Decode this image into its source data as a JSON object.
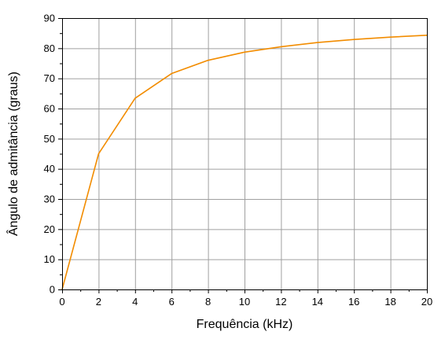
{
  "chart_data": {
    "type": "line",
    "title": "",
    "xlabel": "Frequência (kHz)",
    "ylabel": "Ângulo de admitância (graus)",
    "xlim": [
      0,
      20
    ],
    "ylim": [
      0,
      90
    ],
    "x_ticks": [
      0,
      2,
      4,
      6,
      8,
      10,
      12,
      14,
      16,
      18,
      20
    ],
    "y_ticks": [
      0,
      10,
      20,
      30,
      40,
      50,
      60,
      70,
      80,
      90
    ],
    "grid": true,
    "series": [
      {
        "color": "#f28c00",
        "x": [
          0,
          2,
          4,
          6,
          8,
          10,
          12,
          14,
          16,
          18,
          20
        ],
        "y": [
          0,
          45.0,
          63.4,
          71.6,
          76.0,
          78.7,
          80.5,
          81.9,
          82.9,
          83.7,
          84.3
        ]
      }
    ]
  },
  "colors": {
    "grid": "#a0a0a0",
    "axis": "#000000",
    "background": "#ffffff"
  }
}
